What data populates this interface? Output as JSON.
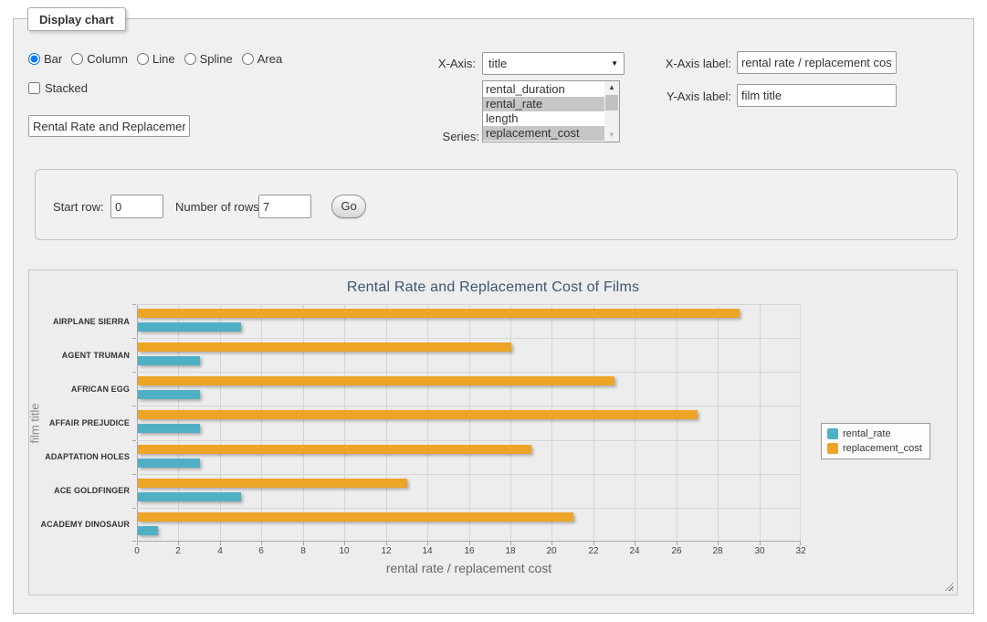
{
  "panel": {
    "legend_title": "Display chart"
  },
  "form": {
    "chart_types": [
      {
        "label": "Bar",
        "selected": true
      },
      {
        "label": "Column",
        "selected": false
      },
      {
        "label": "Line",
        "selected": false
      },
      {
        "label": "Spline",
        "selected": false
      },
      {
        "label": "Area",
        "selected": false
      }
    ],
    "stacked": {
      "label": "Stacked",
      "checked": false
    },
    "title_input": {
      "value": "Rental Rate and Replacemer"
    },
    "x_axis": {
      "label": "X-Axis:",
      "value": "title"
    },
    "series": {
      "label": "Series:",
      "options": [
        {
          "label": "rental_duration",
          "selected": false
        },
        {
          "label": "rental_rate",
          "selected": true
        },
        {
          "label": "length",
          "selected": false
        },
        {
          "label": "replacement_cost",
          "selected": true
        }
      ]
    },
    "x_axis_label": {
      "label": "X-Axis label:",
      "value": "rental rate / replacement cost"
    },
    "y_axis_label": {
      "label": "Y-Axis label:",
      "value": "film title"
    }
  },
  "row_controls": {
    "start_row_label": "Start row:",
    "start_row_value": "0",
    "num_rows_label": "Number of rows:",
    "num_rows_value": "7",
    "go_label": "Go"
  },
  "chart_data": {
    "type": "bar",
    "title": "Rental Rate and Replacement Cost of Films",
    "xlabel": "rental rate / replacement cost",
    "ylabel": "film title",
    "categories": [
      "AIRPLANE SIERRA",
      "AGENT TRUMAN",
      "AFRICAN EGG",
      "AFFAIR PREJUDICE",
      "ADAPTATION HOLES",
      "ACE GOLDFINGER",
      "ACADEMY DINOSAUR"
    ],
    "series": [
      {
        "name": "rental_rate",
        "color": "#4FB0C4",
        "values": [
          4.99,
          2.99,
          2.99,
          2.99,
          2.99,
          4.99,
          0.99
        ]
      },
      {
        "name": "replacement_cost",
        "color": "#EDA427",
        "values": [
          28.99,
          17.99,
          22.99,
          26.99,
          18.99,
          12.99,
          20.99
        ]
      }
    ],
    "bar_draw_order": [
      "replacement_cost",
      "rental_rate"
    ],
    "xlim": [
      0,
      32
    ],
    "tick_step": 2,
    "grid": true,
    "legend_position": "right"
  }
}
